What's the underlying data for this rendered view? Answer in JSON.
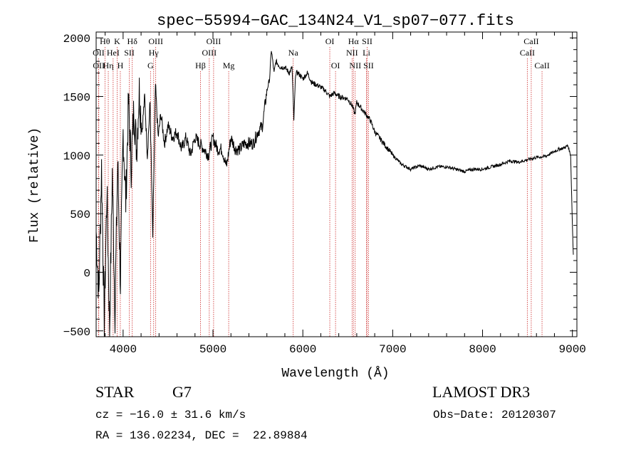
{
  "chart_data": {
    "type": "line",
    "title": "spec−55994−GAC_134N24_V1_sp07−077.fits",
    "xlabel": "Wavelength (Å)",
    "ylabel": "Flux (relative)",
    "xlim": [
      3700,
      9050
    ],
    "ylim": [
      -550,
      2050
    ],
    "xticks": [
      4000,
      5000,
      6000,
      7000,
      8000,
      9000
    ],
    "xtick_labels": [
      "4000",
      "5000",
      "6000",
      "7000",
      "8000",
      "9000"
    ],
    "yticks": [
      -500,
      0,
      500,
      1000,
      1500,
      2000
    ],
    "ytick_labels": [
      "−500",
      "0",
      "500",
      "1000",
      "1500",
      "2000"
    ],
    "series": [
      {
        "name": "spectrum",
        "x": [
          3700,
          3730,
          3760,
          3790,
          3820,
          3850,
          3880,
          3910,
          3940,
          3970,
          4000,
          4030,
          4060,
          4090,
          4120,
          4150,
          4180,
          4210,
          4240,
          4270,
          4300,
          4330,
          4360,
          4390,
          4420,
          4460,
          4500,
          4550,
          4600,
          4650,
          4700,
          4750,
          4800,
          4850,
          4900,
          4950,
          5000,
          5050,
          5100,
          5150,
          5200,
          5250,
          5300,
          5350,
          5400,
          5450,
          5500,
          5550,
          5600,
          5630,
          5650,
          5680,
          5700,
          5750,
          5800,
          5850,
          5880,
          5900,
          5920,
          5950,
          6000,
          6050,
          6100,
          6150,
          6200,
          6250,
          6300,
          6350,
          6400,
          6450,
          6500,
          6550,
          6580,
          6600,
          6650,
          6700,
          6750,
          6800,
          6850,
          6900,
          6950,
          7000,
          7050,
          7100,
          7150,
          7200,
          7300,
          7400,
          7500,
          7600,
          7700,
          7800,
          7900,
          8000,
          8100,
          8200,
          8300,
          8400,
          8500,
          8600,
          8700,
          8800,
          8850,
          8900,
          8950,
          8980,
          9000,
          9010
        ],
        "y": [
          350,
          -200,
          900,
          -450,
          700,
          -500,
          850,
          -350,
          950,
          -100,
          1200,
          600,
          1450,
          900,
          1400,
          1050,
          1550,
          1200,
          1500,
          1000,
          1450,
          300,
          1600,
          1150,
          1350,
          1100,
          1250,
          1150,
          1200,
          1050,
          1150,
          1000,
          1150,
          1100,
          1050,
          1000,
          1150,
          1050,
          1050,
          900,
          1150,
          1050,
          1050,
          1100,
          1100,
          1100,
          1200,
          1250,
          1550,
          1650,
          1900,
          1700,
          1800,
          1750,
          1750,
          1700,
          1750,
          1300,
          1700,
          1700,
          1650,
          1700,
          1620,
          1600,
          1580,
          1550,
          1500,
          1530,
          1500,
          1490,
          1480,
          1420,
          1350,
          1450,
          1400,
          1350,
          1300,
          1200,
          1150,
          1100,
          1050,
          1000,
          960,
          920,
          900,
          880,
          910,
          880,
          900,
          900,
          880,
          860,
          880,
          880,
          900,
          920,
          950,
          940,
          960,
          980,
          990,
          1030,
          1050,
          1060,
          1080,
          1000,
          400,
          150
        ]
      }
    ],
    "line_markers": [
      {
        "label": "Hθ",
        "x": 3798,
        "row": 1
      },
      {
        "label": "OII",
        "x": 3727,
        "row": 2
      },
      {
        "label": "OII",
        "x": 3729,
        "row": 3
      },
      {
        "label": "HeI",
        "x": 3889,
        "row": 2
      },
      {
        "label": "Hη",
        "x": 3835,
        "row": 3
      },
      {
        "label": "K",
        "x": 3934,
        "row": 1
      },
      {
        "label": "H",
        "x": 3969,
        "row": 3
      },
      {
        "label": "SII",
        "x": 4069,
        "row": 2
      },
      {
        "label": "Hδ",
        "x": 4102,
        "row": 1
      },
      {
        "label": "OIII",
        "x": 4363,
        "row": 1
      },
      {
        "label": "Hγ",
        "x": 4340,
        "row": 2
      },
      {
        "label": "G",
        "x": 4305,
        "row": 3
      },
      {
        "label": "Hβ",
        "x": 4861,
        "row": 3
      },
      {
        "label": "OIII",
        "x": 5007,
        "row": 1
      },
      {
        "label": "OIII",
        "x": 4959,
        "row": 2
      },
      {
        "label": "Mg",
        "x": 5175,
        "row": 3
      },
      {
        "label": "Na",
        "x": 5893,
        "row": 2
      },
      {
        "label": "OI",
        "x": 6300,
        "row": 1
      },
      {
        "label": "OI",
        "x": 6364,
        "row": 3
      },
      {
        "label": "Hα",
        "x": 6563,
        "row": 1
      },
      {
        "label": "NII",
        "x": 6548,
        "row": 2
      },
      {
        "label": "NII",
        "x": 6583,
        "row": 3
      },
      {
        "label": "SII",
        "x": 6716,
        "row": 1
      },
      {
        "label": "Li",
        "x": 6708,
        "row": 2
      },
      {
        "label": "SII",
        "x": 6731,
        "row": 3
      },
      {
        "label": "CaII",
        "x": 8542,
        "row": 1
      },
      {
        "label": "CaII",
        "x": 8498,
        "row": 2
      },
      {
        "label": "CaII",
        "x": 8662,
        "row": 3
      }
    ]
  },
  "info": {
    "object_class": "STAR",
    "subclass": "G7",
    "survey": "LAMOST DR3",
    "redshift": "cz = −16.0 ± 31.6 km/s",
    "obs_date": "Obs−Date: 20120307",
    "coords": "RA = 136.02234, DEC =  22.89884"
  }
}
